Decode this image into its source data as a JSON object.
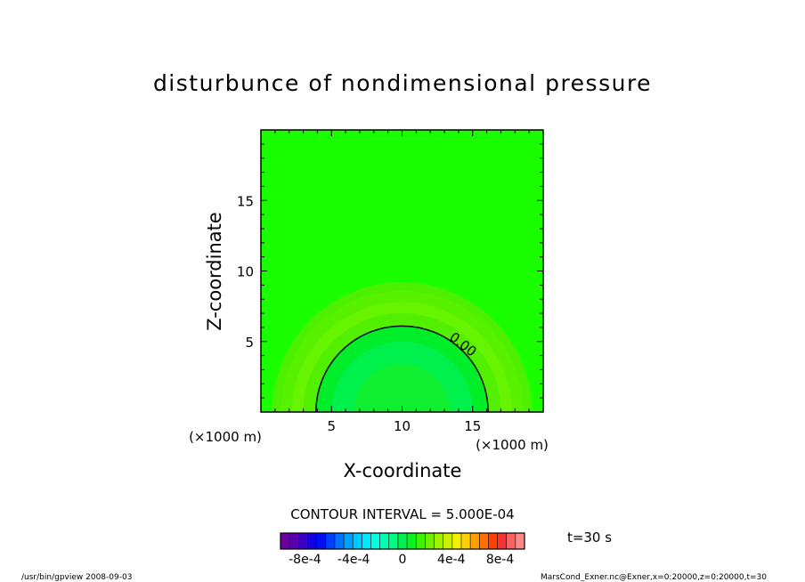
{
  "chart_data": {
    "type": "heatmap",
    "title": "disturbunce of nondimensional pressure",
    "xlabel": "X-coordinate",
    "ylabel": "Z-coordinate",
    "x_unit_label": "(×1000 m)",
    "y_unit_label": "(×1000 m)",
    "xlim": [
      0,
      20
    ],
    "ylim": [
      0,
      20
    ],
    "x_ticks": [
      5,
      10,
      15
    ],
    "y_ticks": [
      5,
      10,
      15
    ],
    "contour": {
      "label": "0.00",
      "center": [
        10,
        0
      ],
      "radius": 6.1
    },
    "field": {
      "background_color": "#1aff00",
      "rings": [
        {
          "radius": 9.2,
          "color": "#4cf000"
        },
        {
          "radius": 8.6,
          "color": "#58f200"
        },
        {
          "radius": 7.8,
          "color": "#66f400"
        },
        {
          "radius": 7.0,
          "color": "#52f000"
        },
        {
          "radius": 6.1,
          "color": "#00ee2a"
        },
        {
          "radius": 5.0,
          "color": "#00f04c"
        },
        {
          "radius": 3.4,
          "color": "#10f030"
        }
      ]
    },
    "contour_interval_text": "CONTOUR INTERVAL = 5.000E-04",
    "time_label": "t=30 s",
    "colorbar": {
      "tick_labels": [
        "-8e-4",
        "-4e-4",
        "0",
        "4e-4",
        "8e-4"
      ],
      "tick_values": [
        -0.0008,
        -0.0004,
        0,
        0.0004,
        0.0008
      ],
      "range": [
        -0.001,
        0.001
      ],
      "colors": [
        "#6a00a0",
        "#5a00b0",
        "#3a00c8",
        "#1000e0",
        "#0010f0",
        "#0040ff",
        "#0070ff",
        "#00a0ff",
        "#00c8ff",
        "#00e8ff",
        "#00ffe0",
        "#00ffb0",
        "#00ff80",
        "#00f050",
        "#10f020",
        "#40f000",
        "#70f000",
        "#a0f000",
        "#c8f000",
        "#f0f000",
        "#ffd000",
        "#ffa000",
        "#ff7000",
        "#ff4000",
        "#ff3030",
        "#ff6060",
        "#ff8888"
      ]
    },
    "footer_left": "/usr/bin/gpview   2008-09-03",
    "footer_right": "MarsCond_Exner.nc@Exner,x=0:20000,z=0:20000,t=30"
  }
}
